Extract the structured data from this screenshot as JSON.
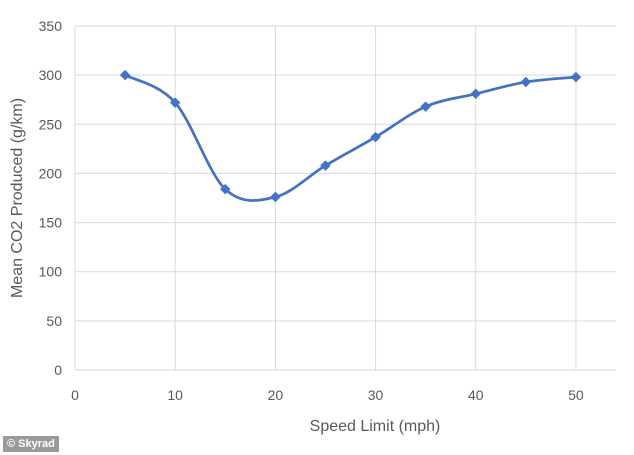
{
  "chart_data": {
    "type": "line",
    "smooth": true,
    "grid": true,
    "legend": "none",
    "xlabel": "Speed Limit (mph)",
    "ylabel": "Mean CO2 Produced (g/km)",
    "xlim": [
      0,
      54
    ],
    "ylim": [
      0,
      350
    ],
    "x_ticks": [
      0,
      10,
      20,
      30,
      40,
      50
    ],
    "y_ticks": [
      0,
      50,
      100,
      150,
      200,
      250,
      300,
      350
    ],
    "series": [
      {
        "color": "#4472C4",
        "marker": "diamond",
        "x": [
          5,
          10,
          15,
          20,
          25,
          30,
          35,
          40,
          45,
          50
        ],
        "y": [
          300,
          272,
          184,
          176,
          208,
          237,
          268,
          281,
          293,
          298
        ]
      }
    ]
  },
  "watermark": "© Skyrad"
}
